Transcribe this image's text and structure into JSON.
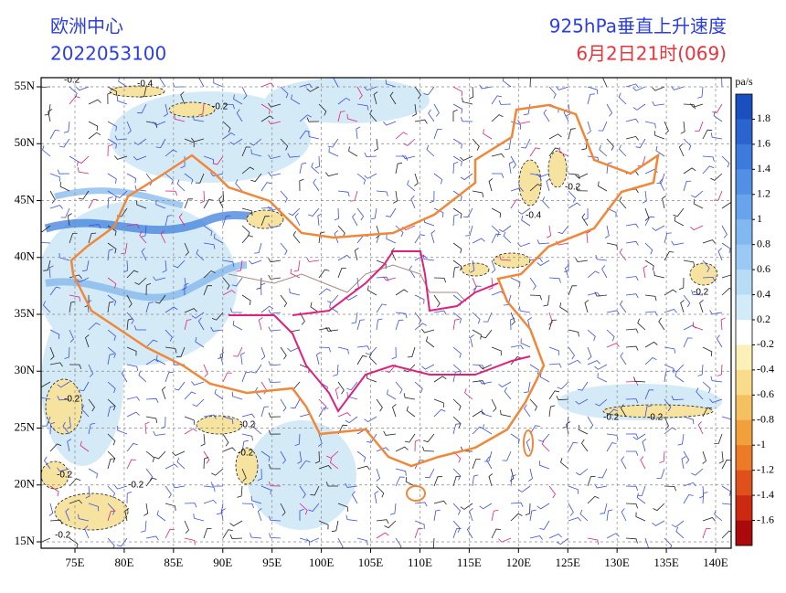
{
  "header": {
    "left_title": "欧洲中心",
    "left_subtitle": "2022053100",
    "right_title": "925hPa垂直上升速度",
    "right_subtitle": "6月2日21时(069)"
  },
  "axes": {
    "lon_ticks": [
      {
        "value": 75,
        "label": "75E"
      },
      {
        "value": 80,
        "label": "80E"
      },
      {
        "value": 85,
        "label": "85E"
      },
      {
        "value": 90,
        "label": "90E"
      },
      {
        "value": 95,
        "label": "95E"
      },
      {
        "value": 100,
        "label": "100E"
      },
      {
        "value": 105,
        "label": "105E"
      },
      {
        "value": 110,
        "label": "110E"
      },
      {
        "value": 115,
        "label": "115E"
      },
      {
        "value": 120,
        "label": "120E"
      },
      {
        "value": 125,
        "label": "125E"
      },
      {
        "value": 130,
        "label": "130E"
      },
      {
        "value": 135,
        "label": "135E"
      },
      {
        "value": 140,
        "label": "140E"
      }
    ],
    "lat_ticks": [
      {
        "value": 55,
        "label": "55N"
      },
      {
        "value": 50,
        "label": "50N"
      },
      {
        "value": 45,
        "label": "45N"
      },
      {
        "value": 40,
        "label": "40N"
      },
      {
        "value": 35,
        "label": "35N"
      },
      {
        "value": 30,
        "label": "30N"
      },
      {
        "value": 25,
        "label": "25N"
      },
      {
        "value": 20,
        "label": "20N"
      },
      {
        "value": 15,
        "label": "15N"
      }
    ]
  },
  "colorbar": {
    "unit": "pa/s",
    "labels": [
      "1.8",
      "1.6",
      "1.4",
      "1.2",
      "1",
      "0.8",
      "0.6",
      "0.4",
      "0.2",
      "-0.2",
      "-0.4",
      "-0.6",
      "-0.8",
      "-1",
      "-1.2",
      "-1.4",
      "-1.6"
    ],
    "colors": [
      "#1a4fbf",
      "#2a64d0",
      "#3c7ade",
      "#5290e6",
      "#68a4ec",
      "#80b8f0",
      "#9acaf3",
      "#b6dcf6",
      "#d2ebf9",
      "#ffffff",
      "#fbf0b8",
      "#f8dc8c",
      "#f5c060",
      "#f2a03c",
      "#ec7a26",
      "#e0501a",
      "#cc2a10",
      "#aa0a0a"
    ]
  },
  "contour_labels": [
    "-0.2",
    "-0.4",
    "-0.2",
    "-0.2",
    "-0.4",
    "-0.2",
    "-0.2",
    "-0.2",
    "-0.2",
    "-0.2",
    "-0.2",
    "-0.2",
    "-0.2",
    "-0.2"
  ]
}
